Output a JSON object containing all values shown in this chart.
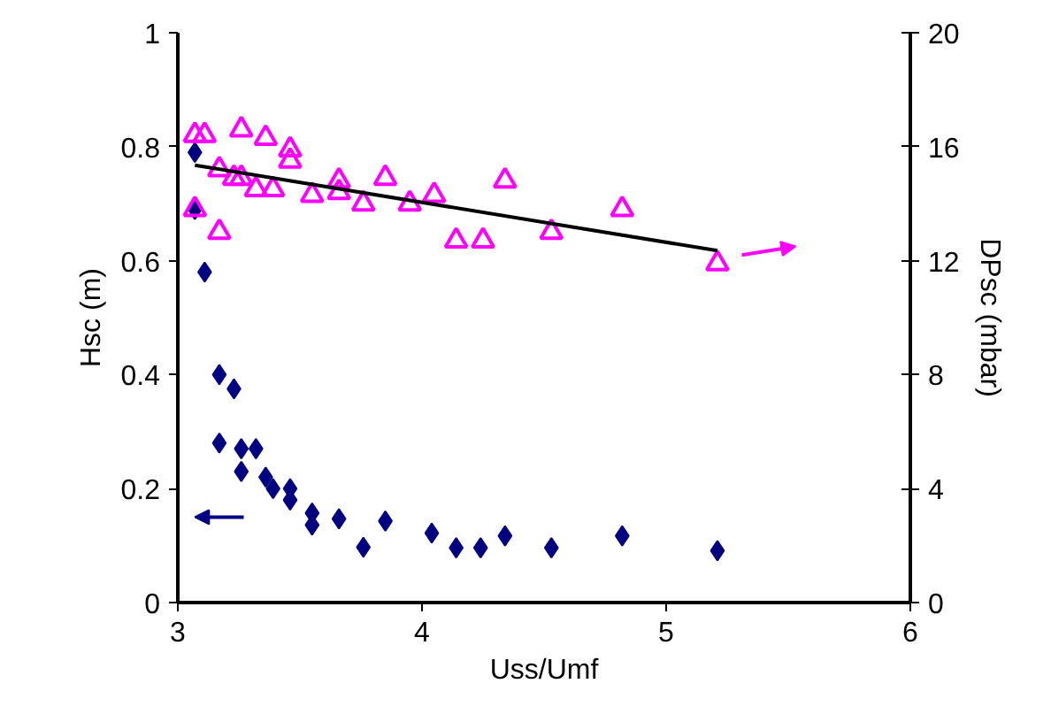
{
  "chart_data": {
    "type": "scatter",
    "xlabel": "Uss/Umf",
    "ylabel": "Hsc (m)",
    "y2label": "DPsc (mbar)",
    "xlim": [
      3,
      6
    ],
    "xticks": [
      3,
      4,
      5,
      6
    ],
    "ylim": [
      0,
      1
    ],
    "yticks": [
      0,
      0.2,
      0.4,
      0.6,
      0.8,
      1
    ],
    "y2lim": [
      0,
      20
    ],
    "y2ticks": [
      0,
      4,
      8,
      12,
      16,
      20
    ],
    "grid": false,
    "series": [
      {
        "marker": "diamond",
        "color": "#000080",
        "x": [
          3.07,
          3.07,
          3.11,
          3.17,
          3.23,
          3.17,
          3.26,
          3.32,
          3.26,
          3.36,
          3.39,
          3.46,
          3.46,
          3.55,
          3.55,
          3.66,
          3.76,
          3.85,
          4.04,
          4.14,
          4.24,
          4.34,
          4.53,
          4.82,
          5.21
        ],
        "values": [
          0.79,
          0.69,
          0.58,
          0.4,
          0.375,
          0.28,
          0.27,
          0.27,
          0.23,
          0.22,
          0.2,
          0.2,
          0.18,
          0.157,
          0.136,
          0.147,
          0.097,
          0.143,
          0.122,
          0.096,
          0.096,
          0.117,
          0.096,
          0.117,
          0.091
        ]
      },
      {
        "marker": "triangle",
        "axis": "y2",
        "color": "#ff00ff",
        "x": [
          3.07,
          3.11,
          3.26,
          3.36,
          3.46,
          3.46,
          3.17,
          3.23,
          3.26,
          3.32,
          3.39,
          3.55,
          3.66,
          3.66,
          3.76,
          3.85,
          3.95,
          4.05,
          4.14,
          4.25,
          4.34,
          4.53,
          4.82,
          3.07,
          3.17,
          5.21
        ],
        "values": [
          16.4,
          16.4,
          16.6,
          16.3,
          15.9,
          15.5,
          15.2,
          14.9,
          14.9,
          14.5,
          14.5,
          14.3,
          14.8,
          14.4,
          14.0,
          14.9,
          14.0,
          14.3,
          12.7,
          12.7,
          14.8,
          13.0,
          13.8,
          13.8,
          13.0,
          11.9
        ]
      },
      {
        "type": "line",
        "marker": "none",
        "axis": "y2",
        "color": "#000000",
        "x": [
          3.07,
          5.21
        ],
        "values": [
          15.35,
          12.35
        ]
      }
    ]
  }
}
